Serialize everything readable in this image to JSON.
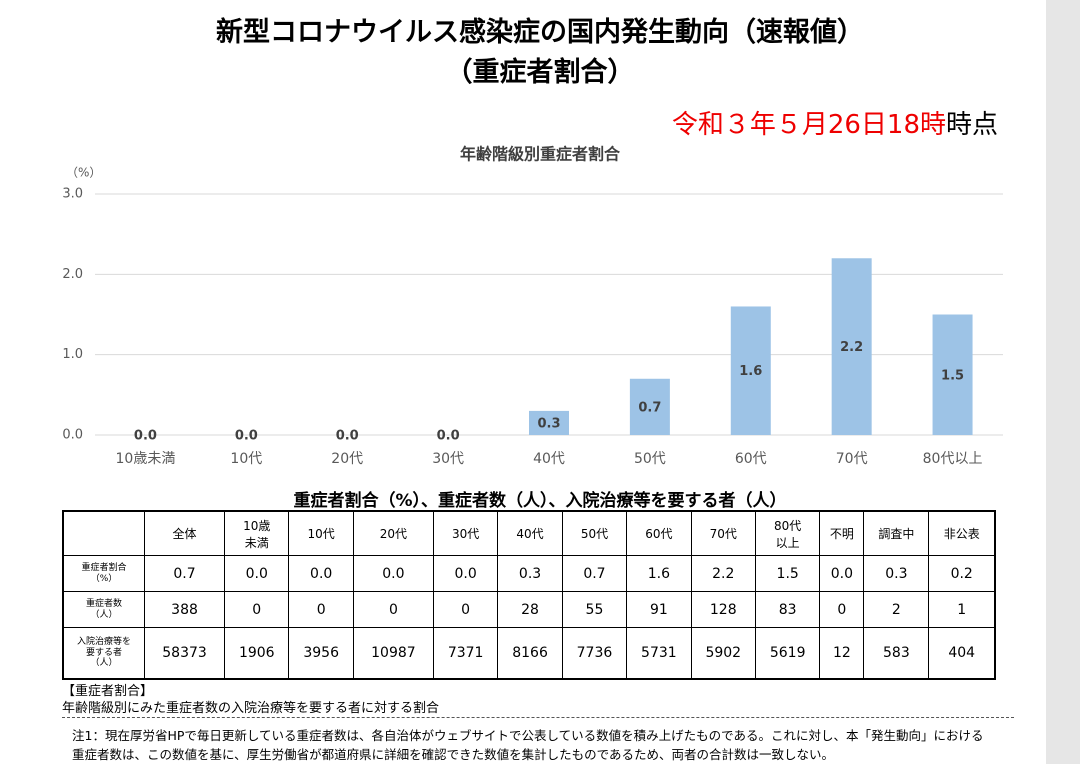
{
  "header": {
    "title": "新型コロナウイルス感染症の国内発生動向（速報値）",
    "subtitle": "（重症者割合）",
    "date": "令和３年５月26日18時",
    "date_suffix": "時点"
  },
  "chart_data": {
    "type": "bar",
    "title": "年齢階級別重症者割合",
    "y_unit": "（%）",
    "categories": [
      "10歳未満",
      "10代",
      "20代",
      "30代",
      "40代",
      "50代",
      "60代",
      "70代",
      "80代以上"
    ],
    "values": [
      0,
      0,
      0,
      0,
      0.3,
      0.7,
      1.6,
      2.2,
      1.5
    ],
    "value_labels": [
      "0.0",
      "0.0",
      "0.0",
      "0.0",
      "0.3",
      "0.7",
      "1.6",
      "2.2",
      "1.5"
    ],
    "color": "#9dc3e6",
    "ylim": [
      0,
      3
    ],
    "yticks": [
      {
        "value": 0,
        "label": "0.0"
      },
      {
        "value": 1,
        "label": "1.0"
      },
      {
        "value": 2,
        "label": "2.0"
      },
      {
        "value": 3,
        "label": "3.0"
      }
    ],
    "grid": true
  },
  "table": {
    "title": "重症者割合（%）、重症者数（人）、入院治療等を要する者（人）",
    "columns": [
      "全体",
      "10歳\n未満",
      "10代",
      "20代",
      "30代",
      "40代",
      "50代",
      "60代",
      "70代",
      "80代\n以上",
      "不明",
      "調査中",
      "非公表"
    ],
    "rows": [
      {
        "label": "重症者割合\n（%）",
        "cells": [
          "0.7",
          "0.0",
          "0.0",
          "0.0",
          "0.0",
          "0.3",
          "0.7",
          "1.6",
          "2.2",
          "1.5",
          "0.0",
          "0.3",
          "0.2"
        ]
      },
      {
        "label": "重症者数\n（人）",
        "cells": [
          "388",
          "0",
          "0",
          "0",
          "0",
          "28",
          "55",
          "91",
          "128",
          "83",
          "0",
          "2",
          "1"
        ]
      },
      {
        "label": "入院治療等を\n要する者\n（人）",
        "cells": [
          "58373",
          "1906",
          "3956",
          "10987",
          "7371",
          "8166",
          "7736",
          "5731",
          "5902",
          "5619",
          "12",
          "583",
          "404"
        ]
      }
    ]
  },
  "notes": {
    "heading": "【重症者割合】",
    "definition": "年齢階級別にみた重症者数の入院治療等を要する者に対する割合",
    "note1": [
      "注1：現在厚労省HPで毎日更新している重症者数は、各自治体がウェブサイトで公表している数値を積み上げたものである。これに対し、本「発生動向」における",
      "重症者数は、この数値を基に、厚生労働省が都道府県に詳細を確認できた数値を集計したものであるため、両者の合計数は一致しない。"
    ]
  }
}
